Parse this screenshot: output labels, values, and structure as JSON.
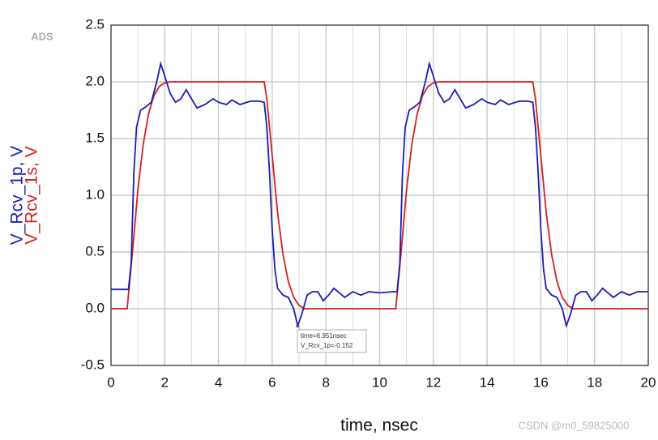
{
  "chart_data": {
    "type": "line",
    "logo": "ADS",
    "xlabel": "time, nsec",
    "watermark": "CSDN @m0_59825000",
    "xlim": [
      0,
      20
    ],
    "ylim": [
      -0.5,
      2.5
    ],
    "xticks": [
      0,
      2,
      4,
      6,
      8,
      10,
      12,
      14,
      16,
      18,
      20
    ],
    "yticks": [
      -0.5,
      {
        "value": 0,
        "label": "0.0"
      },
      0.5,
      {
        "value": 1,
        "label": "1.0"
      },
      1.5,
      {
        "value": 2,
        "label": "2.0"
      },
      2.5
    ],
    "x_minor_ticks": [
      1,
      3,
      5,
      7,
      9,
      11,
      13,
      15,
      17,
      19
    ],
    "grid": true,
    "series": [
      {
        "name": "V_Rcv_1p, V",
        "color": "#1c1cb4",
        "x": [
          0,
          0.65,
          0.75,
          0.85,
          0.95,
          1.1,
          1.3,
          1.5,
          1.7,
          1.85,
          2.0,
          2.2,
          2.4,
          2.6,
          2.8,
          3.0,
          3.2,
          3.5,
          3.8,
          4.0,
          4.3,
          4.5,
          4.8,
          5.2,
          5.5,
          5.7,
          5.8,
          5.9,
          6.0,
          6.1,
          6.2,
          6.4,
          6.6,
          6.8,
          6.95,
          7.1,
          7.3,
          7.5,
          7.7,
          7.9,
          8.1,
          8.3,
          8.5,
          8.7,
          9.0,
          9.3,
          9.6,
          10.0,
          10.5,
          10.65,
          10.75,
          10.85,
          10.95,
          11.1,
          11.3,
          11.5,
          11.7,
          11.85,
          12.0,
          12.2,
          12.4,
          12.6,
          12.8,
          13.0,
          13.2,
          13.5,
          13.8,
          14.0,
          14.3,
          14.5,
          14.8,
          15.2,
          15.5,
          15.7,
          15.8,
          15.9,
          16.0,
          16.1,
          16.2,
          16.4,
          16.6,
          16.8,
          16.95,
          17.1,
          17.3,
          17.5,
          17.7,
          17.9,
          18.1,
          18.3,
          18.5,
          18.7,
          19.0,
          19.3,
          19.6,
          20
        ],
        "values": [
          0.17,
          0.17,
          0.4,
          1.2,
          1.6,
          1.75,
          1.78,
          1.82,
          2.0,
          2.16,
          2.05,
          1.9,
          1.82,
          1.85,
          1.93,
          1.85,
          1.77,
          1.8,
          1.85,
          1.82,
          1.8,
          1.84,
          1.8,
          1.83,
          1.83,
          1.82,
          1.6,
          1.2,
          0.7,
          0.35,
          0.18,
          0.12,
          0.1,
          0.0,
          -0.15,
          -0.05,
          0.12,
          0.15,
          0.15,
          0.07,
          0.12,
          0.18,
          0.14,
          0.1,
          0.15,
          0.12,
          0.15,
          0.14,
          0.15,
          0.15,
          0.4,
          1.2,
          1.6,
          1.75,
          1.78,
          1.82,
          2.0,
          2.16,
          2.05,
          1.9,
          1.82,
          1.85,
          1.93,
          1.85,
          1.77,
          1.8,
          1.85,
          1.82,
          1.8,
          1.84,
          1.8,
          1.83,
          1.83,
          1.82,
          1.6,
          1.2,
          0.7,
          0.35,
          0.18,
          0.12,
          0.1,
          0.0,
          -0.15,
          -0.05,
          0.12,
          0.15,
          0.15,
          0.07,
          0.12,
          0.18,
          0.14,
          0.1,
          0.15,
          0.12,
          0.15,
          0.15
        ]
      },
      {
        "name": "V_Rcv_1s, V",
        "color": "#d42020",
        "x": [
          0,
          0.6,
          0.8,
          1.0,
          1.2,
          1.4,
          1.6,
          1.8,
          2.0,
          2.2,
          5.7,
          5.8,
          6.0,
          6.2,
          6.4,
          6.6,
          6.8,
          7.0,
          7.2,
          10.6,
          10.8,
          11.0,
          11.2,
          11.4,
          11.6,
          11.8,
          12.0,
          12.2,
          15.7,
          15.8,
          16.0,
          16.2,
          16.4,
          16.6,
          16.8,
          17.0,
          17.2,
          20
        ],
        "values": [
          0,
          0,
          0.5,
          1.05,
          1.45,
          1.72,
          1.88,
          1.96,
          1.99,
          2.0,
          2.0,
          1.85,
          1.35,
          0.85,
          0.48,
          0.24,
          0.1,
          0.03,
          0,
          0,
          0.5,
          1.05,
          1.45,
          1.72,
          1.88,
          1.96,
          1.99,
          2.0,
          2.0,
          1.85,
          1.35,
          0.85,
          0.48,
          0.24,
          0.1,
          0.03,
          0,
          0
        ]
      }
    ],
    "marker": {
      "x": 6.951,
      "y": -0.152,
      "lines": [
        "time=6.951nsec",
        "V_Rcv_1p=-0.152"
      ]
    }
  }
}
